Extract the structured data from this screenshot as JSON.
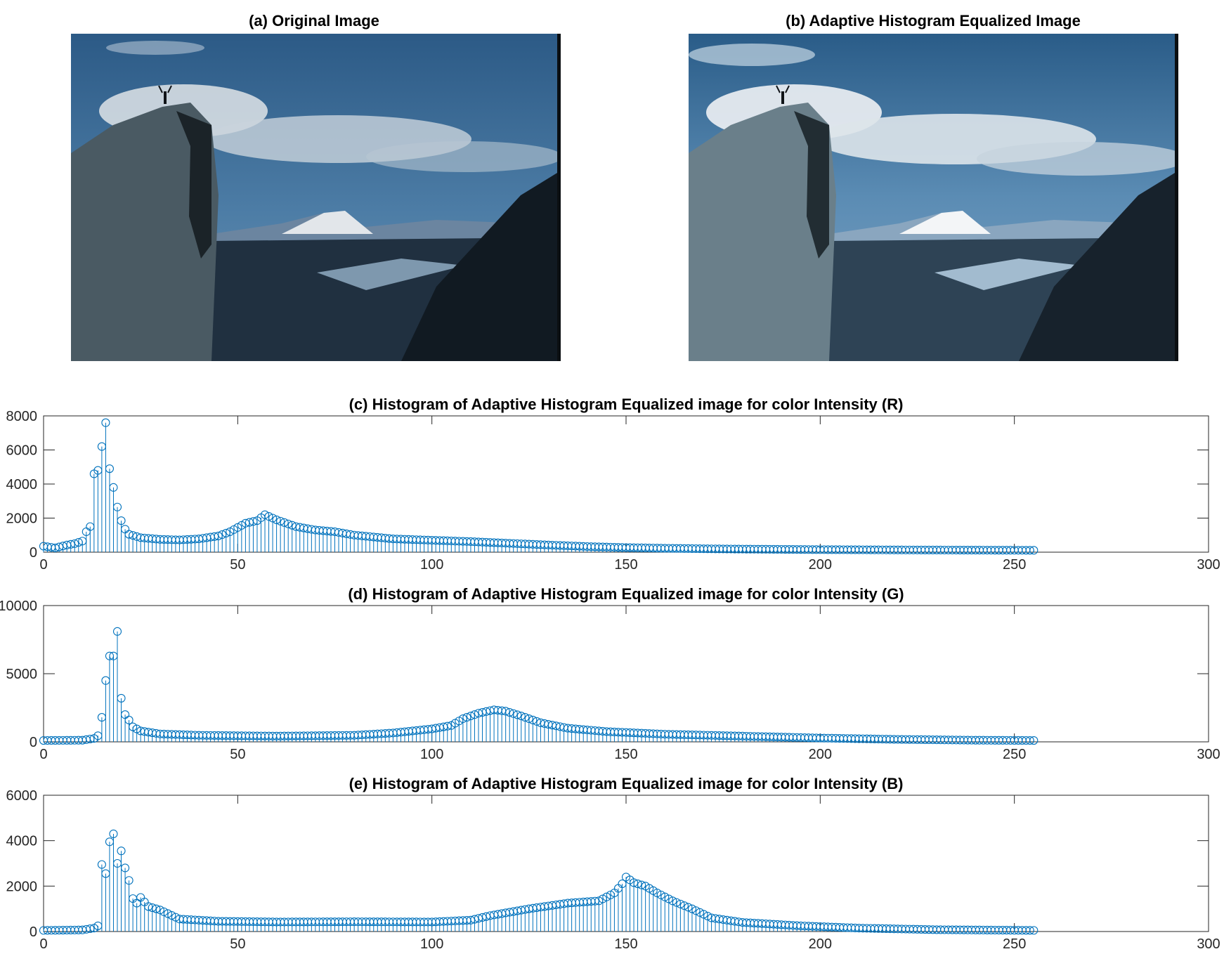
{
  "panels": {
    "original": {
      "title": "(a) Original Image"
    },
    "equalized": {
      "title": "(b) Adaptive Histogram Equalized Image"
    }
  },
  "chart_data": [
    {
      "type": "stem",
      "title": "(c) Histogram of Adaptive Histogram Equalized image for color Intensity (R)",
      "xlim": [
        0,
        300
      ],
      "ylim": [
        0,
        8000
      ],
      "xticks": [
        0,
        50,
        100,
        150,
        200,
        250,
        300
      ],
      "yticks": [
        0,
        2000,
        4000,
        6000,
        8000
      ],
      "color": "#0072BD",
      "x_range": [
        0,
        255
      ],
      "key_points": [
        [
          0,
          350
        ],
        [
          3,
          250
        ],
        [
          6,
          420
        ],
        [
          8,
          500
        ],
        [
          10,
          650
        ],
        [
          11,
          1200
        ],
        [
          12,
          1500
        ],
        [
          13,
          4600
        ],
        [
          14,
          4800
        ],
        [
          15,
          6200
        ],
        [
          16,
          7600
        ],
        [
          17,
          4900
        ],
        [
          18,
          3800
        ],
        [
          19,
          2650
        ],
        [
          20,
          1850
        ],
        [
          21,
          1350
        ],
        [
          22,
          1050
        ],
        [
          25,
          850
        ],
        [
          30,
          750
        ],
        [
          35,
          720
        ],
        [
          40,
          780
        ],
        [
          45,
          950
        ],
        [
          48,
          1200
        ],
        [
          50,
          1450
        ],
        [
          52,
          1700
        ],
        [
          55,
          1850
        ],
        [
          57,
          2200
        ],
        [
          60,
          1900
        ],
        [
          65,
          1500
        ],
        [
          70,
          1300
        ],
        [
          75,
          1200
        ],
        [
          80,
          1000
        ],
        [
          90,
          780
        ],
        [
          100,
          700
        ],
        [
          110,
          620
        ],
        [
          120,
          520
        ],
        [
          130,
          420
        ],
        [
          140,
          330
        ],
        [
          150,
          270
        ],
        [
          160,
          230
        ],
        [
          170,
          200
        ],
        [
          180,
          180
        ],
        [
          200,
          150
        ],
        [
          220,
          130
        ],
        [
          240,
          120
        ],
        [
          255,
          110
        ]
      ]
    },
    {
      "type": "stem",
      "title": "(d) Histogram of Adaptive Histogram Equalized image for color Intensity (G)",
      "xlim": [
        0,
        300
      ],
      "ylim": [
        0,
        10000
      ],
      "xticks": [
        0,
        50,
        100,
        150,
        200,
        250,
        300
      ],
      "yticks": [
        0,
        5000,
        10000
      ],
      "color": "#0072BD",
      "x_range": [
        0,
        255
      ],
      "key_points": [
        [
          0,
          100
        ],
        [
          10,
          120
        ],
        [
          13,
          250
        ],
        [
          14,
          450
        ],
        [
          15,
          1800
        ],
        [
          16,
          4500
        ],
        [
          17,
          6300
        ],
        [
          18,
          6300
        ],
        [
          19,
          8100
        ],
        [
          20,
          3200
        ],
        [
          21,
          2000
        ],
        [
          22,
          1600
        ],
        [
          23,
          1100
        ],
        [
          25,
          800
        ],
        [
          30,
          580
        ],
        [
          40,
          480
        ],
        [
          60,
          420
        ],
        [
          80,
          480
        ],
        [
          90,
          650
        ],
        [
          100,
          950
        ],
        [
          105,
          1200
        ],
        [
          108,
          1700
        ],
        [
          112,
          2100
        ],
        [
          116,
          2350
        ],
        [
          119,
          2250
        ],
        [
          123,
          1900
        ],
        [
          128,
          1400
        ],
        [
          135,
          1000
        ],
        [
          145,
          750
        ],
        [
          160,
          560
        ],
        [
          180,
          420
        ],
        [
          200,
          280
        ],
        [
          220,
          180
        ],
        [
          240,
          120
        ],
        [
          255,
          100
        ]
      ]
    },
    {
      "type": "stem",
      "title": "(e) Histogram of Adaptive Histogram Equalized image for color Intensity (B)",
      "xlim": [
        0,
        300
      ],
      "ylim": [
        0,
        6000
      ],
      "xticks": [
        0,
        50,
        100,
        150,
        200,
        250,
        300
      ],
      "yticks": [
        0,
        2000,
        4000,
        6000
      ],
      "color": "#0072BD",
      "x_range": [
        0,
        255
      ],
      "key_points": [
        [
          0,
          50
        ],
        [
          10,
          70
        ],
        [
          13,
          150
        ],
        [
          14,
          250
        ],
        [
          15,
          2950
        ],
        [
          16,
          2550
        ],
        [
          17,
          3950
        ],
        [
          18,
          4300
        ],
        [
          19,
          3000
        ],
        [
          20,
          3550
        ],
        [
          21,
          2800
        ],
        [
          22,
          2250
        ],
        [
          23,
          1450
        ],
        [
          24,
          1250
        ],
        [
          25,
          1500
        ],
        [
          27,
          1100
        ],
        [
          30,
          950
        ],
        [
          35,
          550
        ],
        [
          45,
          450
        ],
        [
          60,
          420
        ],
        [
          80,
          430
        ],
        [
          100,
          420
        ],
        [
          110,
          500
        ],
        [
          115,
          700
        ],
        [
          125,
          1000
        ],
        [
          135,
          1250
        ],
        [
          143,
          1350
        ],
        [
          147,
          1700
        ],
        [
          149,
          2100
        ],
        [
          150,
          2400
        ],
        [
          152,
          2150
        ],
        [
          155,
          2000
        ],
        [
          158,
          1700
        ],
        [
          162,
          1350
        ],
        [
          167,
          1000
        ],
        [
          172,
          600
        ],
        [
          180,
          400
        ],
        [
          195,
          250
        ],
        [
          210,
          150
        ],
        [
          230,
          80
        ],
        [
          255,
          50
        ]
      ]
    }
  ]
}
